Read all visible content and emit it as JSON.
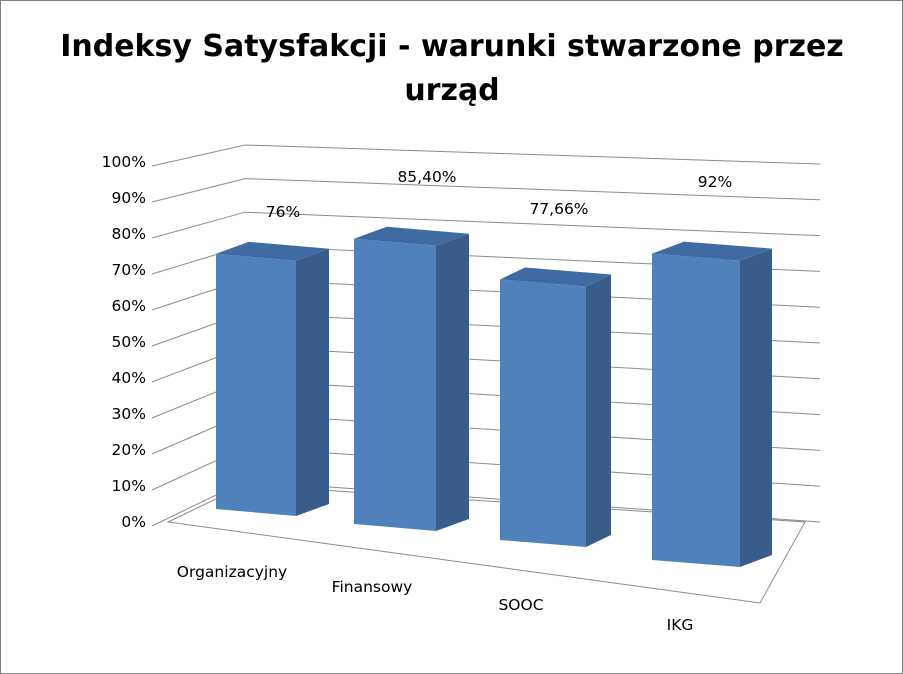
{
  "chart_data": {
    "type": "bar",
    "title_lines": [
      "Indeksy Satysfakcji - warunki stwarzone przez",
      "urząd"
    ],
    "categories": [
      "Organizacyjny",
      "Finansowy",
      "SOOC",
      "IKG"
    ],
    "values": [
      76,
      85.4,
      77.66,
      92
    ],
    "data_labels": [
      "76%",
      "85,40%",
      "77,66%",
      "92%"
    ],
    "y_ticks": [
      "0%",
      "10%",
      "20%",
      "30%",
      "40%",
      "50%",
      "60%",
      "70%",
      "80%",
      "90%",
      "100%"
    ],
    "ylim": [
      0,
      100
    ],
    "y_unit": "%",
    "grid": true,
    "style": "3d-column",
    "colors": {
      "bar_front": "#4f81bd",
      "bar_side": "#385d8a",
      "bar_top": "#3f6ba2",
      "gridline": "#8c8c8c",
      "frame": "#7f7f7f"
    }
  }
}
